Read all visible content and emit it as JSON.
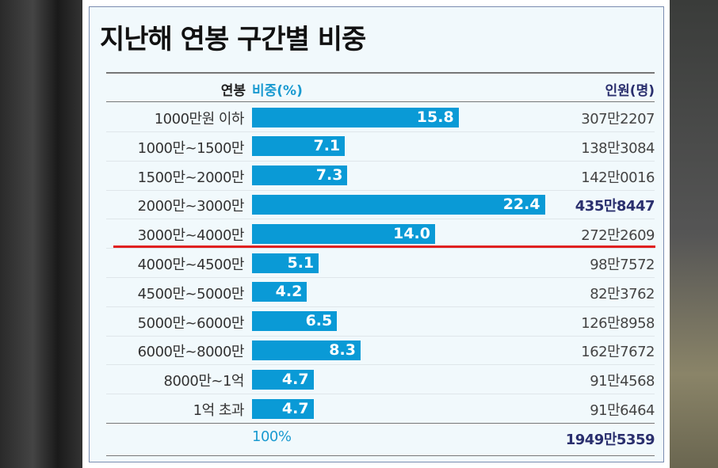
{
  "chart_data": {
    "type": "bar",
    "title": "지난해 연봉 구간별 비중",
    "headers": {
      "category": "연봉",
      "value": "비중(%)",
      "count": "인원(명)"
    },
    "categories": [
      "1000만원 이하",
      "1000만~1500만",
      "1500만~2000만",
      "2000만~3000만",
      "3000만~4000만",
      "4000만~4500만",
      "4500만~5000만",
      "5000만~6000만",
      "6000만~8000만",
      "8000만~1억",
      "1억 초과"
    ],
    "values": [
      15.8,
      7.1,
      7.3,
      22.4,
      14.0,
      5.1,
      4.2,
      6.5,
      8.3,
      4.7,
      4.7
    ],
    "value_labels": [
      "15.8",
      "7.1",
      "7.3",
      "22.4",
      "14.0",
      "5.1",
      "4.2",
      "6.5",
      "8.3",
      "4.7",
      "4.7"
    ],
    "counts": [
      "307만2207",
      "138만3084",
      "142만0016",
      "435만8447",
      "272만2609",
      "98만7572",
      "82만3762",
      "126만8958",
      "162만7672",
      "91만4568",
      "91만6464"
    ],
    "highlight_count_index": 3,
    "total": {
      "percent": "100%",
      "count": "1949만5359"
    },
    "bar_color": "#0a9ad6"
  }
}
